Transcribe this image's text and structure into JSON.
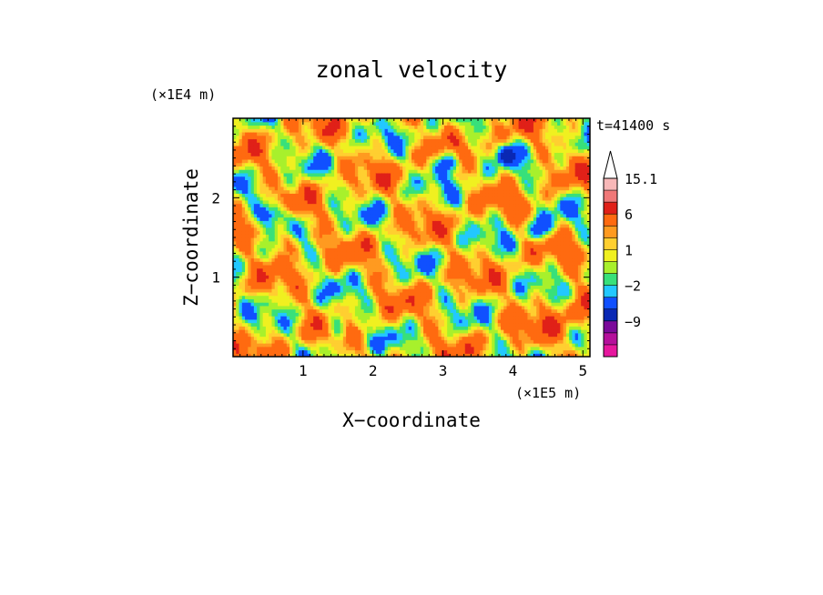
{
  "chart_data": {
    "type": "heatmap",
    "title": "zonal velocity",
    "xlabel": "X−coordinate",
    "ylabel": "Z−coordinate",
    "x_unit": "(×1E5 m)",
    "y_unit": "(×1E4 m)",
    "time_label": "t=41400 s",
    "xlim": [
      0,
      5.1
    ],
    "ylim": [
      0,
      3.0
    ],
    "x_ticks": [
      1,
      2,
      3,
      4,
      5
    ],
    "y_ticks": [
      1,
      2
    ],
    "colorbar": {
      "levels": [
        -15,
        -12,
        -9,
        -6,
        -3,
        -2,
        -1,
        0,
        1,
        2,
        3,
        6,
        9,
        12,
        15.1
      ],
      "colors": [
        "#e6179e",
        "#b5109b",
        "#7a0a9a",
        "#0a28b4",
        "#1050ff",
        "#22c8ff",
        "#38e07a",
        "#a8f02c",
        "#f0f020",
        "#ffcf30",
        "#ff9a20",
        "#ff6a10",
        "#e02018",
        "#f07878",
        "#f8b8b8"
      ],
      "labels": [
        "15.1",
        "6",
        "1",
        "−2",
        "−9"
      ],
      "label_values": [
        15.1,
        6,
        1,
        -2,
        -9
      ],
      "extend": "max"
    }
  }
}
